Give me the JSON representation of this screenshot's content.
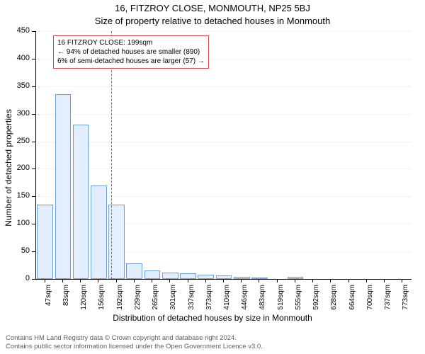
{
  "chart": {
    "type": "histogram",
    "title_line1": "16, FITZROY CLOSE, MONMOUTH, NP25 5BJ",
    "title_line2": "Size of property relative to detached houses in Monmouth",
    "title_fontsize": 13,
    "xlabel": "Distribution of detached houses by size in Monmouth",
    "ylabel": "Number of detached properties",
    "label_fontsize": 12,
    "background_color": "#ffffff",
    "axis_color": "#000000",
    "grid_color": "#e8e8e8",
    "bar_fill": "#e3efff",
    "bar_edge": "#6b9fd8",
    "bar_width": 0.9,
    "ylim": [
      0,
      450
    ],
    "ytick_step": 50,
    "x_tick_labels": [
      "47sqm",
      "83sqm",
      "120sqm",
      "156sqm",
      "192sqm",
      "229sqm",
      "265sqm",
      "301sqm",
      "337sqm",
      "373sqm",
      "410sqm",
      "446sqm",
      "483sqm",
      "519sqm",
      "555sqm",
      "592sqm",
      "628sqm",
      "664sqm",
      "700sqm",
      "737sqm",
      "773sqm"
    ],
    "values": [
      135,
      335,
      280,
      170,
      135,
      28,
      15,
      12,
      10,
      8,
      6,
      4,
      3,
      0,
      4,
      0,
      0,
      0,
      0,
      0,
      0
    ],
    "reference_line": {
      "x_index_after": 4,
      "frac": 0.19,
      "color": "#d04a4a"
    },
    "annotation": {
      "border_color": "#d04a4a",
      "lines": [
        "16 FITZROY CLOSE: 199sqm",
        "← 94% of detached houses are smaller (890)",
        "6% of semi-detached houses are larger (57) →"
      ]
    }
  },
  "footer": {
    "line1": "Contains HM Land Registry data © Crown copyright and database right 2024.",
    "line2": "Contains public sector information licensed under the Open Government Licence v3.0.",
    "color": "#606060",
    "fontsize": 10
  }
}
